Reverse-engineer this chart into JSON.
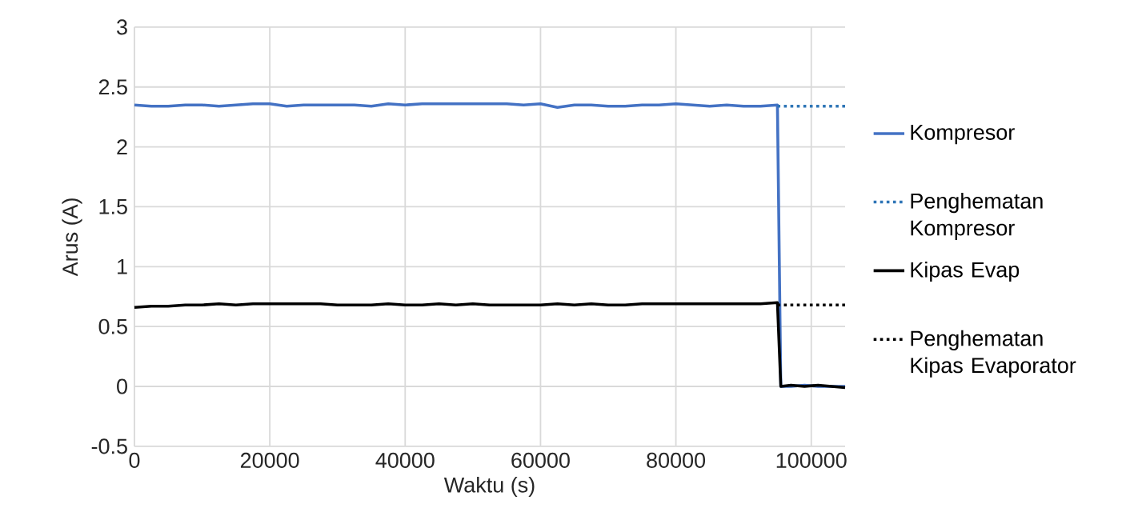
{
  "chart_data": {
    "type": "line",
    "xlabel": "Waktu (s)",
    "ylabel": "Arus (A)",
    "xlim": [
      0,
      105000
    ],
    "ylim": [
      -0.5,
      3
    ],
    "xticks": [
      0,
      20000,
      40000,
      60000,
      80000,
      100000
    ],
    "yticks": [
      -0.5,
      0,
      0.5,
      1,
      1.5,
      2,
      2.5,
      3
    ],
    "grid": true,
    "legend": "right",
    "marker": "none",
    "series": [
      {
        "name": "Kompresor",
        "color": "#4472c4",
        "line_style": "solid",
        "x": [
          0,
          2500,
          5000,
          7500,
          10000,
          12500,
          15000,
          17500,
          20000,
          22500,
          25000,
          27500,
          30000,
          32500,
          35000,
          37500,
          40000,
          42500,
          45000,
          47500,
          50000,
          52500,
          55000,
          57500,
          60000,
          62500,
          65000,
          67500,
          70000,
          72500,
          75000,
          77500,
          80000,
          82500,
          85000,
          87500,
          90000,
          92500,
          95000,
          95500,
          97000,
          99000,
          101000,
          103000,
          105000
        ],
        "values": [
          2.35,
          2.34,
          2.34,
          2.35,
          2.35,
          2.34,
          2.35,
          2.36,
          2.36,
          2.34,
          2.35,
          2.35,
          2.35,
          2.35,
          2.34,
          2.36,
          2.35,
          2.36,
          2.36,
          2.36,
          2.36,
          2.36,
          2.36,
          2.35,
          2.36,
          2.33,
          2.35,
          2.35,
          2.34,
          2.34,
          2.35,
          2.35,
          2.36,
          2.35,
          2.34,
          2.35,
          2.34,
          2.34,
          2.35,
          0,
          0,
          0.01,
          0,
          0,
          0
        ]
      },
      {
        "name": "Penghematan Kompresor",
        "color": "#2e75b6",
        "line_style": "dotted",
        "x": [
          95000,
          105000
        ],
        "values": [
          2.34,
          2.34
        ]
      },
      {
        "name": "Kipas Evap",
        "color": "#000000",
        "line_style": "solid",
        "x": [
          0,
          2500,
          5000,
          7500,
          10000,
          12500,
          15000,
          17500,
          20000,
          22500,
          25000,
          27500,
          30000,
          32500,
          35000,
          37500,
          40000,
          42500,
          45000,
          47500,
          50000,
          52500,
          55000,
          57500,
          60000,
          62500,
          65000,
          67500,
          70000,
          72500,
          75000,
          77500,
          80000,
          82500,
          85000,
          87500,
          90000,
          92500,
          95000,
          95500,
          97000,
          99000,
          101000,
          103000,
          105000
        ],
        "values": [
          0.66,
          0.67,
          0.67,
          0.68,
          0.68,
          0.69,
          0.68,
          0.69,
          0.69,
          0.69,
          0.69,
          0.69,
          0.68,
          0.68,
          0.68,
          0.69,
          0.68,
          0.68,
          0.69,
          0.68,
          0.69,
          0.68,
          0.68,
          0.68,
          0.68,
          0.69,
          0.68,
          0.69,
          0.68,
          0.68,
          0.69,
          0.69,
          0.69,
          0.69,
          0.69,
          0.69,
          0.69,
          0.69,
          0.7,
          0,
          0.01,
          0,
          0.01,
          0,
          -0.01
        ]
      },
      {
        "name": "Penghematan Kipas Evaporator",
        "color": "#000000",
        "line_style": "dotted",
        "x": [
          95000,
          105000
        ],
        "values": [
          0.68,
          0.68
        ]
      }
    ]
  }
}
